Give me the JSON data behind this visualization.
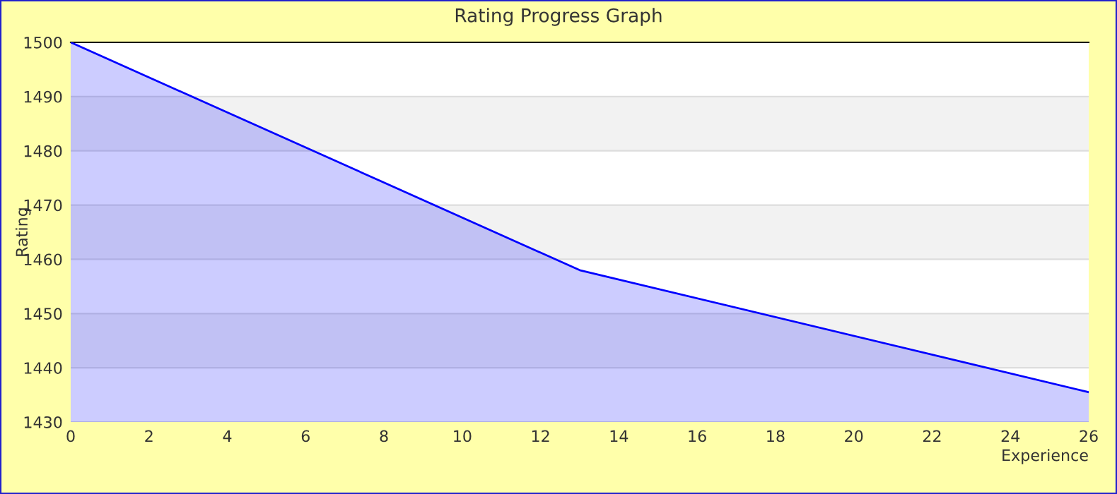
{
  "chart_data": {
    "type": "area",
    "title": "Rating Progress Graph",
    "xlabel": "Experience",
    "ylabel": "Rating",
    "x": [
      0,
      13,
      26
    ],
    "series": [
      {
        "color": "#0000ff",
        "values": [
          1500,
          1458,
          1435.5
        ]
      }
    ],
    "xlim": [
      0,
      26
    ],
    "xticks": [
      0,
      2,
      4,
      6,
      8,
      10,
      12,
      14,
      16,
      18,
      20,
      22,
      24,
      26
    ],
    "ylim": [
      1430,
      1500
    ],
    "yticks": [
      1430,
      1440,
      1450,
      1460,
      1470,
      1480,
      1490,
      1500
    ],
    "grid": "y",
    "bands": [
      {
        "axis": "y",
        "from": 1440,
        "to": 1450,
        "color": "#f2f2f2"
      },
      {
        "axis": "y",
        "from": 1460,
        "to": 1470,
        "color": "#f2f2f2"
      },
      {
        "axis": "y",
        "from": 1480,
        "to": 1490,
        "color": "#f2f2f2"
      }
    ]
  }
}
